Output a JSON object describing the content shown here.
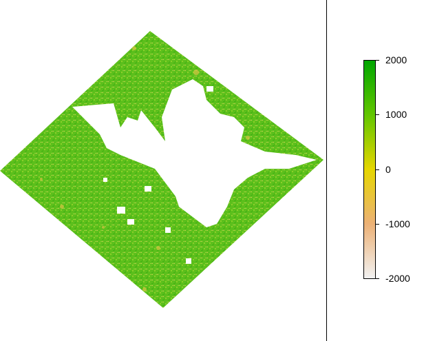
{
  "legend": {
    "min": -2000,
    "max": 2000,
    "ticks": [
      {
        "value": 2000,
        "label": "2000"
      },
      {
        "value": 1000,
        "label": "1000"
      },
      {
        "value": 0,
        "label": "0"
      },
      {
        "value": -1000,
        "label": "-1000"
      },
      {
        "value": -2000,
        "label": "-2000"
      }
    ],
    "colors": [
      "#f2f2f2",
      "#ecb176",
      "#e6d600",
      "#63c600",
      "#00a600"
    ]
  }
}
